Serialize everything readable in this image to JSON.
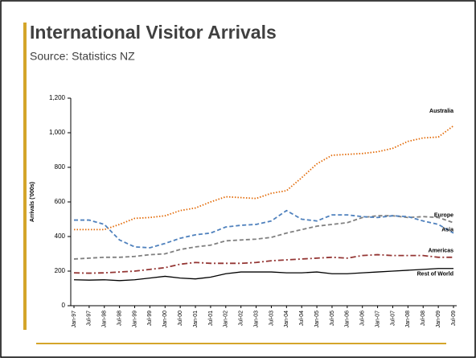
{
  "chart_data": {
    "type": "line",
    "title": "International Visitor Arrivals",
    "subtitle": "Source: Statistics NZ",
    "y_label": "Arrivals ('000s)",
    "categories": [
      "Jan-97",
      "Jul-97",
      "Jan-98",
      "Jul-98",
      "Jan-99",
      "Jul-99",
      "Jan-00",
      "Jul-00",
      "Jan-01",
      "Jul-01",
      "Jan-02",
      "Jul-02",
      "Jan-03",
      "Jul-03",
      "Jan-04",
      "Jul-04",
      "Jan-05",
      "Jul-05",
      "Jan-06",
      "Jul-06",
      "Jan-07",
      "Jul-07",
      "Jan-08",
      "Jul-08",
      "Jan-09",
      "Jul-09"
    ],
    "series": [
      {
        "name": "Australia",
        "color": "#e36c0a",
        "style": "dotted",
        "values": [
          440,
          440,
          440,
          470,
          505,
          510,
          520,
          550,
          565,
          600,
          630,
          625,
          620,
          650,
          665,
          740,
          820,
          870,
          875,
          880,
          890,
          910,
          950,
          970,
          975,
          1040
        ]
      },
      {
        "name": "Europe",
        "color": "#808080",
        "style": "dashed",
        "values": [
          270,
          275,
          280,
          280,
          285,
          295,
          300,
          325,
          340,
          350,
          375,
          380,
          385,
          395,
          420,
          440,
          460,
          470,
          480,
          510,
          520,
          520,
          510,
          515,
          510,
          480
        ]
      },
      {
        "name": "Asia",
        "color": "#4f81bd",
        "style": "dashed",
        "values": [
          495,
          495,
          470,
          380,
          340,
          335,
          360,
          390,
          410,
          420,
          455,
          465,
          470,
          490,
          550,
          500,
          490,
          525,
          525,
          515,
          510,
          520,
          515,
          490,
          470,
          420
        ]
      },
      {
        "name": "Americas",
        "color": "#943634",
        "style": "dashdot",
        "values": [
          190,
          188,
          190,
          195,
          200,
          210,
          220,
          240,
          250,
          245,
          245,
          245,
          250,
          260,
          265,
          270,
          275,
          280,
          275,
          290,
          295,
          290,
          290,
          290,
          280,
          280
        ]
      },
      {
        "name": "Rest of World",
        "color": "#000000",
        "style": "solid",
        "values": [
          150,
          148,
          150,
          145,
          150,
          160,
          170,
          160,
          155,
          165,
          185,
          195,
          195,
          195,
          190,
          190,
          195,
          185,
          185,
          190,
          195,
          200,
          205,
          210,
          215,
          215
        ]
      }
    ],
    "ylim": [
      0,
      1200
    ],
    "yticks": [
      0,
      200,
      400,
      600,
      800,
      {
        "value": 1000,
        "label": "1,000"
      },
      {
        "value": 1200,
        "label": "1,200"
      }
    ],
    "grid": false
  }
}
